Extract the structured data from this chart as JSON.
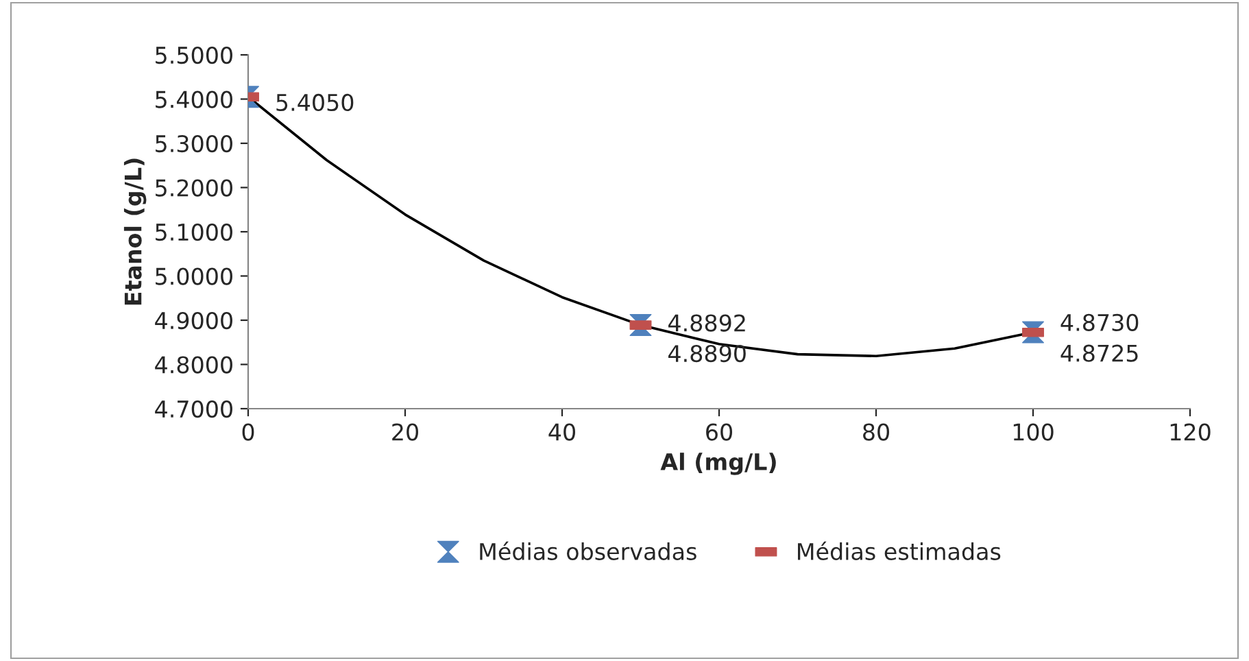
{
  "chart_data": {
    "type": "scatter",
    "xlabel": "Al (mg/L)",
    "ylabel": "Etanol (g/L)",
    "x": [
      0,
      50,
      100
    ],
    "xlim": [
      0,
      120
    ],
    "xticks": [
      0,
      20,
      40,
      60,
      80,
      100,
      120
    ],
    "ylim": [
      4.7,
      5.5
    ],
    "yticks": [
      {
        "value": 4.7,
        "label": "4.7000"
      },
      {
        "value": 4.8,
        "label": "4.8000"
      },
      {
        "value": 4.9,
        "label": "4.9000"
      },
      {
        "value": 5.0,
        "label": "5.0000"
      },
      {
        "value": 5.1,
        "label": "5.1000"
      },
      {
        "value": 5.2,
        "label": "5.2000"
      },
      {
        "value": 5.3,
        "label": "5.3000"
      },
      {
        "value": 5.4,
        "label": "5.4000"
      },
      {
        "value": 5.5,
        "label": "5.5000"
      }
    ],
    "grid": false,
    "legend": "bottom",
    "series": [
      {
        "name": "Médias observadas",
        "color": "#4f81bd",
        "marker": "triangle",
        "values": [
          5.405,
          4.8892,
          4.873
        ],
        "value_labels": [
          "5.4050",
          "4.8892",
          "4.8730"
        ]
      },
      {
        "name": "Médias estimadas",
        "color": "#c0504d",
        "marker": "square",
        "values": [
          5.405,
          4.889,
          4.8725
        ],
        "value_labels": [
          null,
          "4.8890",
          "4.8725"
        ]
      },
      {
        "type": "line",
        "color": "#000000",
        "marker": "none",
        "x": [
          0,
          10,
          20,
          30,
          40,
          50,
          60,
          70,
          80,
          90,
          100
        ],
        "values": [
          5.405,
          5.262,
          5.139,
          5.035,
          4.952,
          4.889,
          4.846,
          4.823,
          4.819,
          4.836,
          4.873
        ]
      }
    ]
  }
}
